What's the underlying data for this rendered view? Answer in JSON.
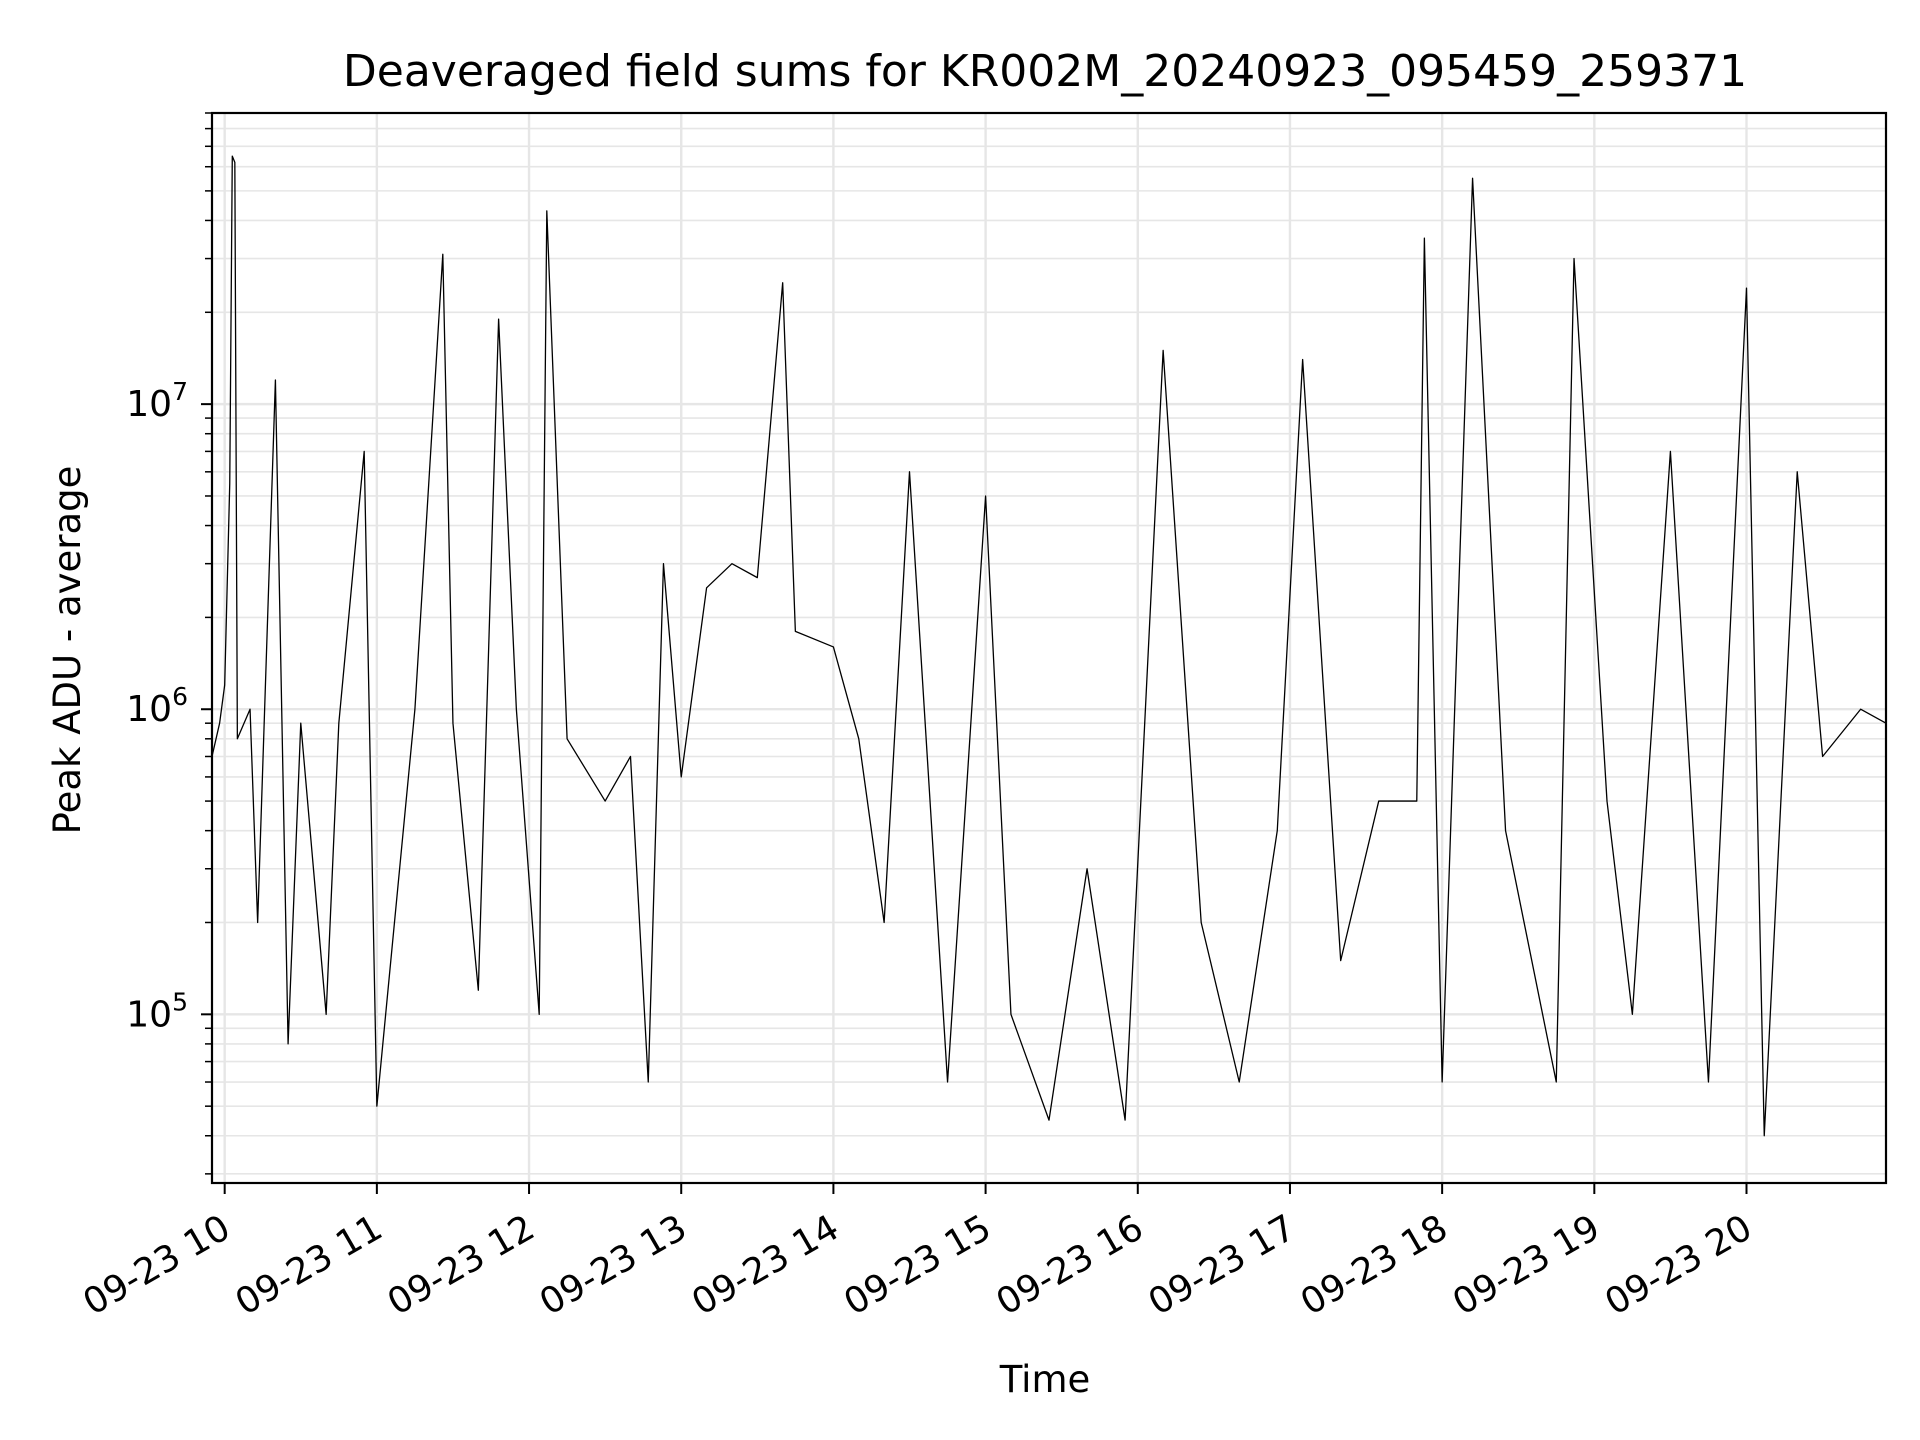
{
  "chart_data": {
    "type": "line",
    "title": "Deaveraged field sums for KR002M_20240923_095459_259371",
    "xlabel": "Time",
    "ylabel": "Peak ADU - average",
    "yscale": "log",
    "ylim": [
      28000,
      90000000
    ],
    "xlim": [
      "2024-09-23 09:55",
      "2024-09-23 20:55"
    ],
    "x_ticks": [
      {
        "value": "2024-09-23 10:00",
        "label": "09-23 10"
      },
      {
        "value": "2024-09-23 11:00",
        "label": "09-23 11"
      },
      {
        "value": "2024-09-23 12:00",
        "label": "09-23 12"
      },
      {
        "value": "2024-09-23 13:00",
        "label": "09-23 13"
      },
      {
        "value": "2024-09-23 14:00",
        "label": "09-23 14"
      },
      {
        "value": "2024-09-23 15:00",
        "label": "09-23 15"
      },
      {
        "value": "2024-09-23 16:00",
        "label": "09-23 16"
      },
      {
        "value": "2024-09-23 17:00",
        "label": "09-23 17"
      },
      {
        "value": "2024-09-23 18:00",
        "label": "09-23 18"
      },
      {
        "value": "2024-09-23 19:00",
        "label": "09-23 19"
      },
      {
        "value": "2024-09-23 20:00",
        "label": "09-23 20"
      }
    ],
    "y_ticks": [
      {
        "value": 100000,
        "base": "10",
        "exp": "5"
      },
      {
        "value": 1000000,
        "base": "10",
        "exp": "6"
      },
      {
        "value": 10000000,
        "base": "10",
        "exp": "7"
      }
    ],
    "grid": true,
    "line_color": "#000000",
    "grid_color": "#e6e6e6",
    "series": [
      {
        "values": [
          [
            "2024-09-23 09:55",
            700000
          ],
          [
            "2024-09-23 09:58",
            900000
          ],
          [
            "2024-09-23 10:00",
            1200000
          ],
          [
            "2024-09-23 10:02",
            5500000
          ],
          [
            "2024-09-23 10:03",
            65000000
          ],
          [
            "2024-09-23 10:04",
            62000000
          ],
          [
            "2024-09-23 10:05",
            800000
          ],
          [
            "2024-09-23 10:10",
            1000000
          ],
          [
            "2024-09-23 10:13",
            200000
          ],
          [
            "2024-09-23 10:20",
            12000000
          ],
          [
            "2024-09-23 10:25",
            80000
          ],
          [
            "2024-09-23 10:30",
            900000
          ],
          [
            "2024-09-23 10:40",
            100000
          ],
          [
            "2024-09-23 10:45",
            900000
          ],
          [
            "2024-09-23 10:55",
            7000000
          ],
          [
            "2024-09-23 11:00",
            50000
          ],
          [
            "2024-09-23 11:15",
            1000000
          ],
          [
            "2024-09-23 11:26",
            31000000
          ],
          [
            "2024-09-23 11:30",
            900000
          ],
          [
            "2024-09-23 11:40",
            120000
          ],
          [
            "2024-09-23 11:48",
            19000000
          ],
          [
            "2024-09-23 11:55",
            1000000
          ],
          [
            "2024-09-23 12:04",
            100000
          ],
          [
            "2024-09-23 12:07",
            43000000
          ],
          [
            "2024-09-23 12:15",
            800000
          ],
          [
            "2024-09-23 12:30",
            500000
          ],
          [
            "2024-09-23 12:40",
            700000
          ],
          [
            "2024-09-23 12:47",
            60000
          ],
          [
            "2024-09-23 12:53",
            3000000
          ],
          [
            "2024-09-23 13:00",
            600000
          ],
          [
            "2024-09-23 13:10",
            2500000
          ],
          [
            "2024-09-23 13:20",
            3000000
          ],
          [
            "2024-09-23 13:30",
            2700000
          ],
          [
            "2024-09-23 13:40",
            25000000
          ],
          [
            "2024-09-23 13:45",
            1800000
          ],
          [
            "2024-09-23 14:00",
            1600000
          ],
          [
            "2024-09-23 14:10",
            800000
          ],
          [
            "2024-09-23 14:20",
            200000
          ],
          [
            "2024-09-23 14:30",
            6000000
          ],
          [
            "2024-09-23 14:45",
            60000
          ],
          [
            "2024-09-23 15:00",
            5000000
          ],
          [
            "2024-09-23 15:10",
            100000
          ],
          [
            "2024-09-23 15:25",
            45000
          ],
          [
            "2024-09-23 15:40",
            300000
          ],
          [
            "2024-09-23 15:55",
            45000
          ],
          [
            "2024-09-23 16:10",
            15000000
          ],
          [
            "2024-09-23 16:25",
            200000
          ],
          [
            "2024-09-23 16:40",
            60000
          ],
          [
            "2024-09-23 16:55",
            400000
          ],
          [
            "2024-09-23 17:05",
            14000000
          ],
          [
            "2024-09-23 17:20",
            150000
          ],
          [
            "2024-09-23 17:35",
            500000
          ],
          [
            "2024-09-23 17:50",
            500000
          ],
          [
            "2024-09-23 17:53",
            35000000
          ],
          [
            "2024-09-23 18:00",
            60000
          ],
          [
            "2024-09-23 18:12",
            55000000
          ],
          [
            "2024-09-23 18:25",
            400000
          ],
          [
            "2024-09-23 18:45",
            60000
          ],
          [
            "2024-09-23 18:52",
            30000000
          ],
          [
            "2024-09-23 19:05",
            500000
          ],
          [
            "2024-09-23 19:15",
            100000
          ],
          [
            "2024-09-23 19:30",
            7000000
          ],
          [
            "2024-09-23 19:45",
            60000
          ],
          [
            "2024-09-23 20:00",
            24000000
          ],
          [
            "2024-09-23 20:07",
            40000
          ],
          [
            "2024-09-23 20:20",
            6000000
          ],
          [
            "2024-09-23 20:30",
            700000
          ],
          [
            "2024-09-23 20:45",
            1000000
          ],
          [
            "2024-09-23 20:55",
            900000
          ]
        ]
      }
    ]
  }
}
